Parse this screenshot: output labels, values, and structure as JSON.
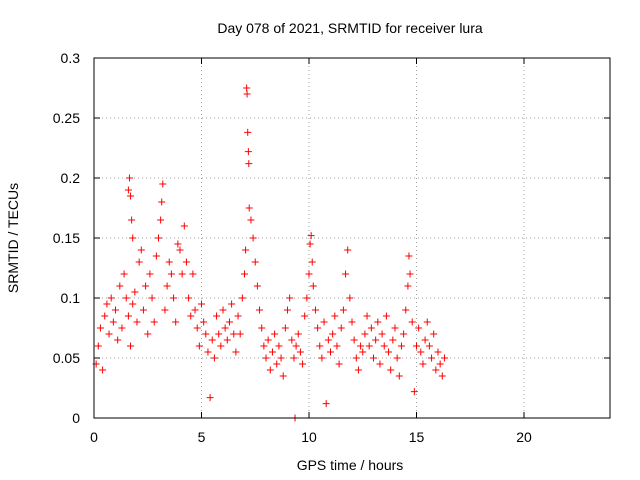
{
  "chart_data": {
    "type": "scatter",
    "title": "Day 078 of 2021, SRMTID for receiver lura",
    "xlabel": "GPS time / hours",
    "ylabel": "SRMTID / TECUs",
    "xlim": [
      0,
      24
    ],
    "ylim": [
      0,
      0.3
    ],
    "grid": true,
    "x_ticks": [
      0,
      5,
      10,
      15,
      20
    ],
    "x_tick_labels": [
      "0",
      "5",
      "10",
      "15",
      "20"
    ],
    "y_ticks": [
      0,
      0.05,
      0.1,
      0.15,
      0.2,
      0.25,
      0.3
    ],
    "y_tick_labels": [
      "0",
      "0.05",
      "0.1",
      "0.15",
      "0.2",
      "0.25",
      "0.3"
    ],
    "marker": "+",
    "series": [
      {
        "name": "SRMTID",
        "color": "#ff0000",
        "x_range": [
          0,
          16.3
        ],
        "note": "dense cloud of individual samples; baseline ~0.04-0.10 TECU",
        "points": [
          [
            0.1,
            0.045
          ],
          [
            0.2,
            0.06
          ],
          [
            0.3,
            0.075
          ],
          [
            0.4,
            0.04
          ],
          [
            0.5,
            0.085
          ],
          [
            0.6,
            0.095
          ],
          [
            0.7,
            0.07
          ],
          [
            0.8,
            0.1
          ],
          [
            0.9,
            0.08
          ],
          [
            1.0,
            0.09
          ],
          [
            1.1,
            0.065
          ],
          [
            1.2,
            0.11
          ],
          [
            1.3,
            0.075
          ],
          [
            1.4,
            0.12
          ],
          [
            1.5,
            0.1
          ],
          [
            1.6,
            0.085
          ],
          [
            1.7,
            0.06
          ],
          [
            1.8,
            0.095
          ],
          [
            1.9,
            0.105
          ],
          [
            2.0,
            0.08
          ],
          [
            1.6,
            0.19
          ],
          [
            1.65,
            0.2
          ],
          [
            1.7,
            0.185
          ],
          [
            1.75,
            0.165
          ],
          [
            1.8,
            0.15
          ],
          [
            2.1,
            0.13
          ],
          [
            2.2,
            0.14
          ],
          [
            2.3,
            0.09
          ],
          [
            2.4,
            0.11
          ],
          [
            2.5,
            0.07
          ],
          [
            2.6,
            0.12
          ],
          [
            2.7,
            0.1
          ],
          [
            2.8,
            0.08
          ],
          [
            2.9,
            0.135
          ],
          [
            3.0,
            0.15
          ],
          [
            3.1,
            0.165
          ],
          [
            3.15,
            0.18
          ],
          [
            3.2,
            0.195
          ],
          [
            3.3,
            0.09
          ],
          [
            3.4,
            0.11
          ],
          [
            3.5,
            0.13
          ],
          [
            3.6,
            0.12
          ],
          [
            3.7,
            0.1
          ],
          [
            3.8,
            0.08
          ],
          [
            3.9,
            0.145
          ],
          [
            4.0,
            0.14
          ],
          [
            4.1,
            0.12
          ],
          [
            4.2,
            0.16
          ],
          [
            4.3,
            0.13
          ],
          [
            4.4,
            0.1
          ],
          [
            4.5,
            0.085
          ],
          [
            4.6,
            0.12
          ],
          [
            4.7,
            0.09
          ],
          [
            4.8,
            0.075
          ],
          [
            4.9,
            0.06
          ],
          [
            5.0,
            0.095
          ],
          [
            5.1,
            0.08
          ],
          [
            5.2,
            0.07
          ],
          [
            5.3,
            0.055
          ],
          [
            5.4,
            0.017
          ],
          [
            5.5,
            0.065
          ],
          [
            5.6,
            0.05
          ],
          [
            5.7,
            0.085
          ],
          [
            5.8,
            0.07
          ],
          [
            5.9,
            0.06
          ],
          [
            6.0,
            0.09
          ],
          [
            6.1,
            0.075
          ],
          [
            6.2,
            0.065
          ],
          [
            6.3,
            0.08
          ],
          [
            6.4,
            0.095
          ],
          [
            6.5,
            0.07
          ],
          [
            6.6,
            0.055
          ],
          [
            6.7,
            0.085
          ],
          [
            6.8,
            0.07
          ],
          [
            6.9,
            0.1
          ],
          [
            7.0,
            0.12
          ],
          [
            7.05,
            0.14
          ],
          [
            7.1,
            0.275
          ],
          [
            7.12,
            0.27
          ],
          [
            7.15,
            0.238
          ],
          [
            7.18,
            0.222
          ],
          [
            7.2,
            0.212
          ],
          [
            7.22,
            0.175
          ],
          [
            7.3,
            0.165
          ],
          [
            7.4,
            0.15
          ],
          [
            7.5,
            0.13
          ],
          [
            7.6,
            0.11
          ],
          [
            7.7,
            0.09
          ],
          [
            7.8,
            0.075
          ],
          [
            7.9,
            0.06
          ],
          [
            8.0,
            0.05
          ],
          [
            8.1,
            0.065
          ],
          [
            8.2,
            0.04
          ],
          [
            8.3,
            0.055
          ],
          [
            8.4,
            0.07
          ],
          [
            8.5,
            0.045
          ],
          [
            8.6,
            0.06
          ],
          [
            8.7,
            0.05
          ],
          [
            8.8,
            0.035
          ],
          [
            8.9,
            0.075
          ],
          [
            9.0,
            0.09
          ],
          [
            9.1,
            0.1
          ],
          [
            9.2,
            0.065
          ],
          [
            9.3,
            0.05
          ],
          [
            9.35,
            0.0
          ],
          [
            9.4,
            0.06
          ],
          [
            9.5,
            0.07
          ],
          [
            9.6,
            0.055
          ],
          [
            9.7,
            0.045
          ],
          [
            9.8,
            0.085
          ],
          [
            9.9,
            0.1
          ],
          [
            10.0,
            0.12
          ],
          [
            10.05,
            0.145
          ],
          [
            10.1,
            0.152
          ],
          [
            10.15,
            0.13
          ],
          [
            10.2,
            0.11
          ],
          [
            10.3,
            0.09
          ],
          [
            10.4,
            0.075
          ],
          [
            10.5,
            0.06
          ],
          [
            10.6,
            0.05
          ],
          [
            10.7,
            0.08
          ],
          [
            10.8,
            0.012
          ],
          [
            10.9,
            0.065
          ],
          [
            11.0,
            0.055
          ],
          [
            11.1,
            0.07
          ],
          [
            11.2,
            0.085
          ],
          [
            11.3,
            0.06
          ],
          [
            11.4,
            0.045
          ],
          [
            11.5,
            0.075
          ],
          [
            11.6,
            0.09
          ],
          [
            11.7,
            0.12
          ],
          [
            11.8,
            0.14
          ],
          [
            11.9,
            0.1
          ],
          [
            12.0,
            0.08
          ],
          [
            12.1,
            0.065
          ],
          [
            12.2,
            0.05
          ],
          [
            12.3,
            0.04
          ],
          [
            12.4,
            0.06
          ],
          [
            12.5,
            0.055
          ],
          [
            12.6,
            0.07
          ],
          [
            12.7,
            0.085
          ],
          [
            12.8,
            0.06
          ],
          [
            12.9,
            0.075
          ],
          [
            13.0,
            0.05
          ],
          [
            13.1,
            0.065
          ],
          [
            13.2,
            0.08
          ],
          [
            13.3,
            0.045
          ],
          [
            13.4,
            0.07
          ],
          [
            13.5,
            0.06
          ],
          [
            13.6,
            0.085
          ],
          [
            13.7,
            0.055
          ],
          [
            13.8,
            0.04
          ],
          [
            13.9,
            0.065
          ],
          [
            14.0,
            0.075
          ],
          [
            14.1,
            0.05
          ],
          [
            14.2,
            0.035
          ],
          [
            14.3,
            0.06
          ],
          [
            14.4,
            0.07
          ],
          [
            14.5,
            0.09
          ],
          [
            14.6,
            0.11
          ],
          [
            14.65,
            0.135
          ],
          [
            14.7,
            0.12
          ],
          [
            14.8,
            0.08
          ],
          [
            14.9,
            0.022
          ],
          [
            15.0,
            0.06
          ],
          [
            15.1,
            0.075
          ],
          [
            15.2,
            0.055
          ],
          [
            15.3,
            0.045
          ],
          [
            15.4,
            0.065
          ],
          [
            15.5,
            0.08
          ],
          [
            15.6,
            0.06
          ],
          [
            15.7,
            0.05
          ],
          [
            15.8,
            0.07
          ],
          [
            15.9,
            0.04
          ],
          [
            16.0,
            0.055
          ],
          [
            16.1,
            0.045
          ],
          [
            16.2,
            0.035
          ],
          [
            16.3,
            0.05
          ]
        ]
      }
    ]
  }
}
